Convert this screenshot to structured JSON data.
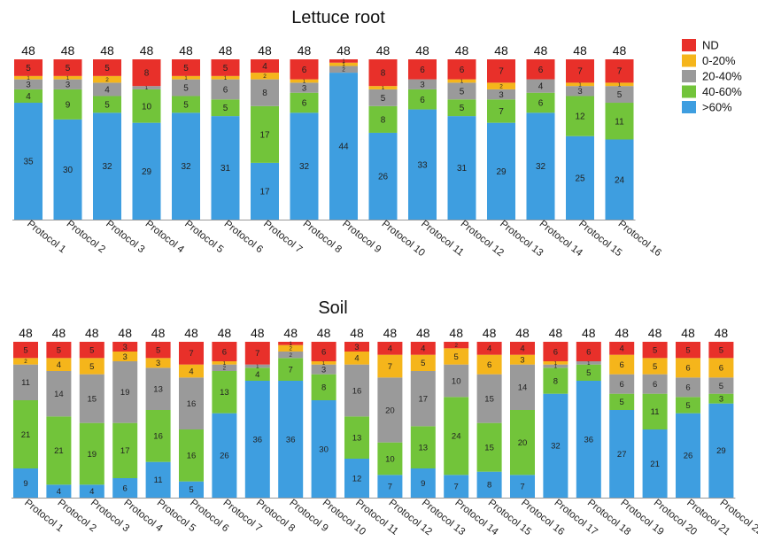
{
  "legend": {
    "items": [
      {
        "label": "ND",
        "color": "#e8302a"
      },
      {
        "label": "0-20%",
        "color": "#f5b51b"
      },
      {
        "label": "20-40%",
        "color": "#9a9a9a"
      },
      {
        "label": "40-60%",
        "color": "#72c43a"
      },
      {
        "label": ">60%",
        "color": "#3e9ee0"
      }
    ]
  },
  "chart_data": [
    {
      "type": "bar",
      "stacked": true,
      "title": "Lettuce root",
      "categories": [
        "Protocol 1",
        "Protocol 2",
        "Protocol 3",
        "Protocol 4",
        "Protocol 5",
        "Protocol 6",
        "Protocol 7",
        "Protocol 8",
        "Protocol 9",
        "Protocol 10",
        "Protocol 11",
        "Protocol 12",
        "Protocol 13",
        "Protocol 14",
        "Protocol 15",
        "Protocol 16"
      ],
      "totals": [
        "48",
        "48",
        "48",
        "48",
        "48",
        "48",
        "48",
        "48",
        "48",
        "48",
        "48",
        "48",
        "48",
        "48",
        "48",
        "48"
      ],
      "ylim": [
        0,
        48
      ],
      "series": [
        {
          "name": ">60%",
          "color": "#3e9ee0",
          "values": [
            35,
            30,
            32,
            29,
            32,
            31,
            17,
            32,
            44,
            26,
            33,
            31,
            29,
            32,
            25,
            24
          ]
        },
        {
          "name": "40-60%",
          "color": "#72c43a",
          "values": [
            4,
            9,
            5,
            10,
            5,
            5,
            17,
            6,
            0,
            8,
            6,
            5,
            7,
            6,
            12,
            11
          ]
        },
        {
          "name": "20-40%",
          "color": "#9a9a9a",
          "values": [
            3,
            3,
            4,
            1,
            5,
            6,
            8,
            3,
            2,
            5,
            3,
            5,
            3,
            4,
            3,
            5
          ]
        },
        {
          "name": "0-20%",
          "color": "#f5b51b",
          "values": [
            1,
            1,
            2,
            0,
            1,
            1,
            2,
            1,
            1,
            1,
            0,
            1,
            2,
            0,
            1,
            1
          ]
        },
        {
          "name": "ND",
          "color": "#e8302a",
          "values": [
            5,
            5,
            5,
            8,
            5,
            5,
            4,
            6,
            1,
            8,
            6,
            6,
            7,
            6,
            7,
            7
          ]
        }
      ]
    },
    {
      "type": "bar",
      "stacked": true,
      "title": "Soil",
      "categories": [
        "Protocol 1",
        "Protocol 2",
        "Protocol 3",
        "Protocol 4",
        "Protocol 5",
        "Protocol 6",
        "Protocol 7",
        "Protocol 8",
        "Protocol 9",
        "Protocol 10",
        "Protocol 11",
        "Protocol 12",
        "Protocol 13",
        "Protocol 14",
        "Protocol 15",
        "Protocol 16",
        "Protocol 17",
        "Protocol 18",
        "Protocol 19",
        "Protocol 20",
        "Protocol 21",
        "Protocol 22"
      ],
      "totals": [
        "48",
        "48",
        "48",
        "48",
        "48",
        "48",
        "48",
        "48",
        "48",
        "48",
        "48",
        "48",
        "48",
        "48",
        "48",
        "48",
        "48",
        "48",
        "48",
        "48",
        "48",
        "48"
      ],
      "ylim": [
        0,
        48
      ],
      "series": [
        {
          "name": ">60%",
          "color": "#3e9ee0",
          "values": [
            9,
            4,
            4,
            6,
            11,
            5,
            26,
            36,
            36,
            30,
            12,
            7,
            9,
            7,
            8,
            7,
            32,
            36,
            27,
            21,
            26,
            29
          ]
        },
        {
          "name": "40-60%",
          "color": "#72c43a",
          "values": [
            21,
            21,
            19,
            17,
            16,
            16,
            13,
            4,
            7,
            8,
            13,
            10,
            13,
            24,
            15,
            20,
            8,
            5,
            5,
            11,
            5,
            3
          ]
        },
        {
          "name": "20-40%",
          "color": "#9a9a9a",
          "values": [
            11,
            14,
            15,
            19,
            13,
            16,
            2,
            1,
            2,
            3,
            16,
            20,
            17,
            10,
            15,
            14,
            1,
            1,
            6,
            6,
            6,
            5
          ]
        },
        {
          "name": "0-20%",
          "color": "#f5b51b",
          "values": [
            2,
            4,
            5,
            3,
            3,
            4,
            1,
            0,
            2,
            1,
            4,
            7,
            5,
            5,
            6,
            3,
            1,
            0,
            6,
            5,
            6,
            6
          ]
        },
        {
          "name": "ND",
          "color": "#e8302a",
          "values": [
            5,
            5,
            5,
            3,
            5,
            7,
            6,
            7,
            1,
            6,
            3,
            4,
            4,
            2,
            4,
            4,
            6,
            6,
            4,
            5,
            5,
            5
          ]
        }
      ]
    }
  ]
}
